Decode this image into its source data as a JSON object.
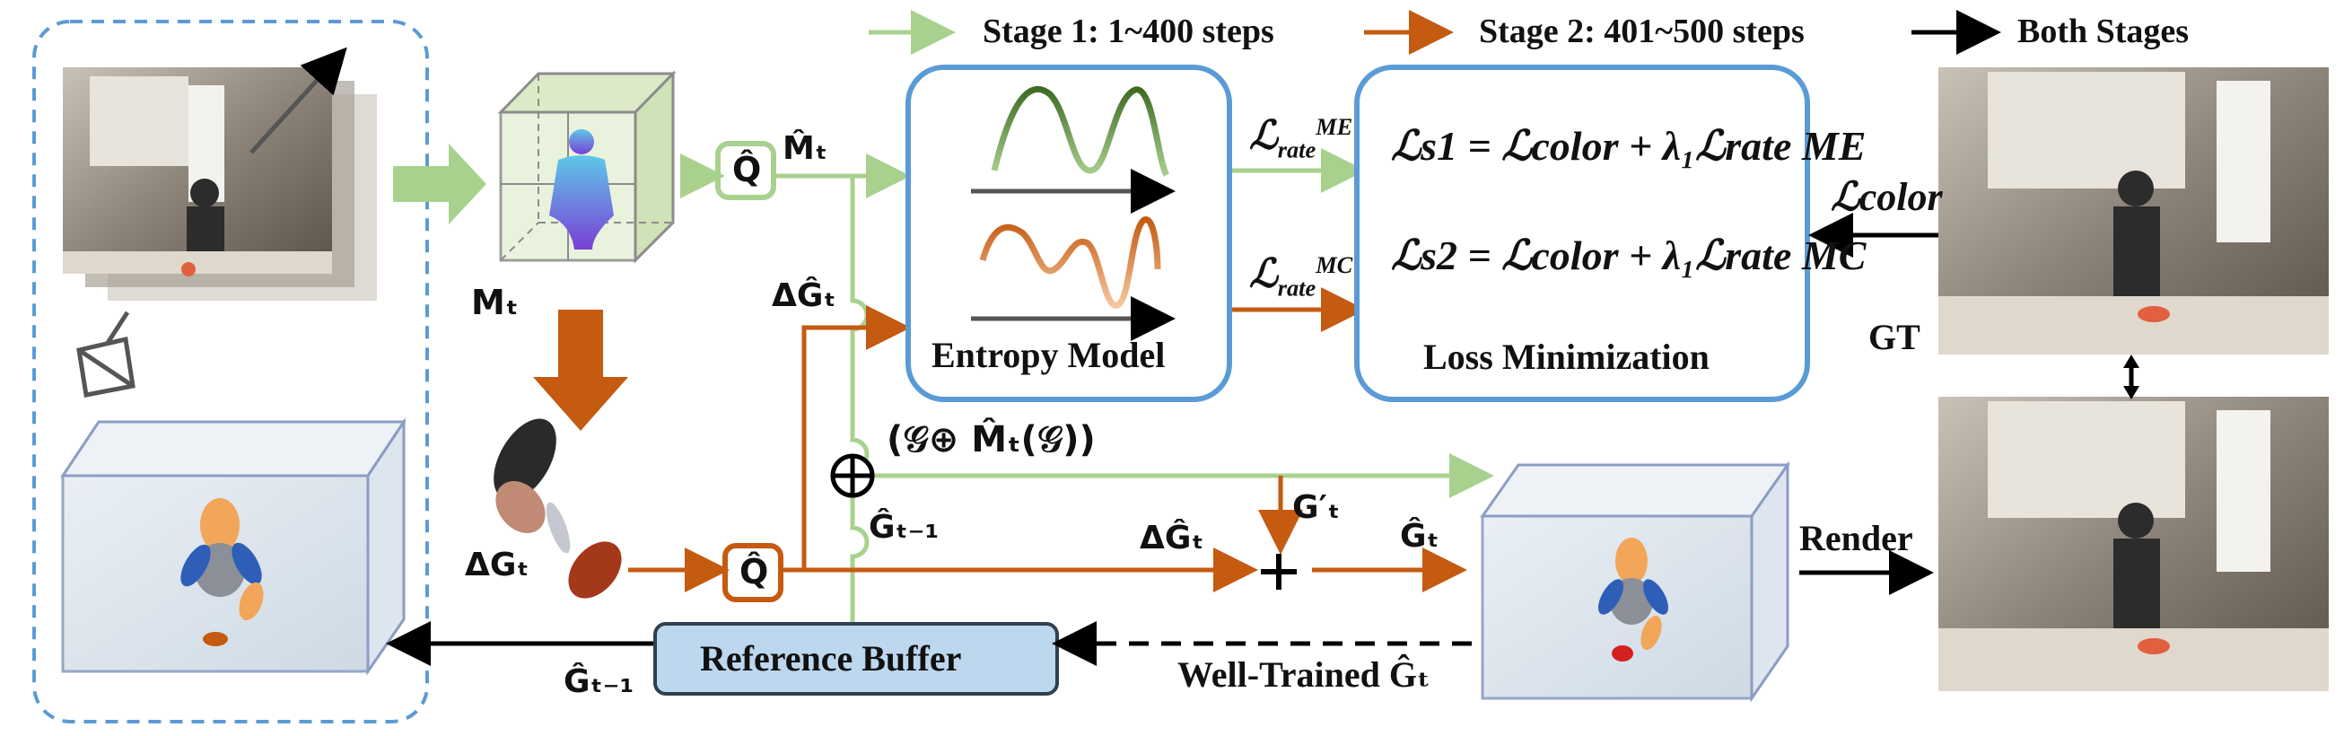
{
  "legend": {
    "stage1": "Stage 1: 1~400 steps",
    "stage2": "Stage 2: 401~500 steps",
    "both": "Both Stages"
  },
  "labels": {
    "m_t": "Mₜ",
    "m_hat_t": "M̂ₜ",
    "q_hat": "Q̂",
    "delta_g_hat": "ΔĜₜ",
    "delta_g": "ΔGₜ",
    "composition": "(𝒢⊕ M̂ₜ(𝒢))",
    "g_prev": "Ĝₜ₋₁",
    "g_prime": "G′ₜ",
    "g_hat_t": "Ĝₜ",
    "gt": "GT",
    "render": "Render",
    "well_trained": "Well-Trained Ĝₜ"
  },
  "boxes": {
    "entropy_model": "Entropy Model",
    "loss_minimization": "Loss Minimization",
    "reference_buffer": "Reference Buffer"
  },
  "losses": {
    "rate_sub": "rate",
    "me_sup": "ME",
    "mc_sup": "MC",
    "eq_s1": "ℒs1 = ℒcolor + λ₁ℒrate ME",
    "eq_s2": "ℒs2 = ℒcolor + λ₁ℒrate MC",
    "color": "ℒcolor"
  },
  "colors": {
    "stage1": "#a9d18e",
    "stage2": "#c55a11",
    "box_border": "#5b9bd5",
    "buffer_fill": "#bdd7ee"
  }
}
